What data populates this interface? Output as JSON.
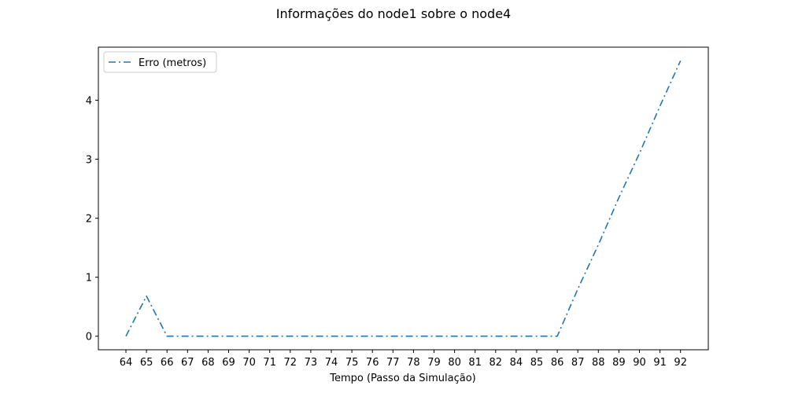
{
  "chart_data": {
    "type": "line",
    "title": "Informações do node1 sobre o node4",
    "xlabel": "Tempo (Passo da Simulação)",
    "ylabel": "",
    "categories": [
      "64",
      "65",
      "66",
      "67",
      "68",
      "69",
      "70",
      "71",
      "72",
      "73",
      "74",
      "75",
      "76",
      "77",
      "78",
      "79",
      "80",
      "81",
      "82",
      "84",
      "85",
      "86",
      "87",
      "88",
      "89",
      "90",
      "91",
      "92"
    ],
    "series": [
      {
        "name": "Erro (metros)",
        "values": [
          0.0,
          0.68,
          0.0,
          0.0,
          0.0,
          0.0,
          0.0,
          0.0,
          0.0,
          0.0,
          0.0,
          0.0,
          0.0,
          0.0,
          0.0,
          0.0,
          0.0,
          0.0,
          0.0,
          0.0,
          0.0,
          0.0,
          0.8,
          1.55,
          2.35,
          3.1,
          3.9,
          4.67
        ],
        "color": "#1f77b4",
        "linestyle": "dashdot"
      }
    ],
    "yticks": [
      "0",
      "1",
      "2",
      "3",
      "4"
    ],
    "ylim": [
      -0.23,
      4.9
    ],
    "grid": false,
    "legend": "top-left"
  }
}
